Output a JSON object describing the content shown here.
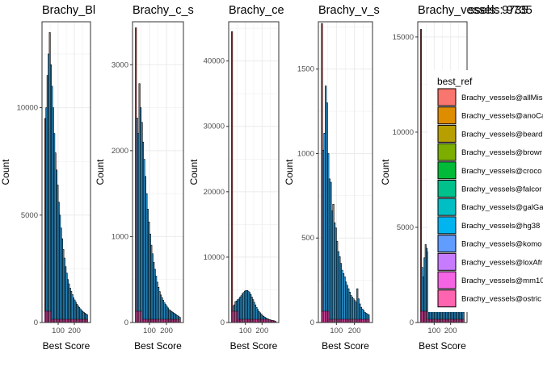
{
  "figure_overlay_text": "ssels: 9735",
  "chart_data": [
    {
      "type": "bar",
      "title": "Brachy_Bl",
      "xlabel": "Best Score",
      "ylabel": "Count",
      "xlim": [
        0,
        300
      ],
      "ylim": [
        0,
        14000
      ],
      "xticks": [
        100,
        200
      ],
      "xtick_labels": [
        "100",
        "200"
      ],
      "yticks": [
        0,
        5000,
        10000
      ],
      "ytick_labels": [
        "0",
        "5000",
        "10000"
      ],
      "grid": true,
      "x": [
        20,
        27,
        34,
        41,
        48,
        55,
        62,
        69,
        76,
        83,
        90,
        97,
        104,
        111,
        118,
        125,
        132,
        139,
        146,
        153,
        160,
        167,
        174,
        181,
        188,
        195,
        202,
        209,
        216,
        223,
        230,
        237,
        244,
        251,
        258,
        265,
        272,
        279
      ],
      "values": [
        9500,
        10000,
        11500,
        12500,
        13500,
        12000,
        11000,
        10000,
        8800,
        7900,
        7100,
        6400,
        5600,
        5000,
        4400,
        3900,
        3400,
        3000,
        2600,
        2300,
        2000,
        1800,
        1600,
        1450,
        1300,
        1150,
        1050,
        950,
        850,
        780,
        700,
        640,
        580,
        520,
        480,
        440,
        400,
        360
      ]
    },
    {
      "type": "bar",
      "title": "Brachy_c_s",
      "xlabel": "Best Score",
      "ylabel": "Count",
      "xlim": [
        0,
        300
      ],
      "ylim": [
        0,
        3500
      ],
      "xticks": [
        100,
        200
      ],
      "xtick_labels": [
        "100",
        "200"
      ],
      "yticks": [
        0,
        1000,
        2000,
        3000
      ],
      "ytick_labels": [
        "0",
        "1000",
        "2000",
        "3000"
      ],
      "grid": true,
      "x": [
        20,
        27,
        34,
        41,
        48,
        55,
        62,
        69,
        76,
        83,
        90,
        97,
        104,
        111,
        118,
        125,
        132,
        139,
        146,
        153,
        160,
        167,
        174,
        181,
        188,
        195,
        202,
        209,
        216,
        223,
        230,
        237,
        244,
        251,
        258,
        265,
        272,
        279
      ],
      "values": [
        3430,
        2380,
        2200,
        2780,
        2500,
        2330,
        2100,
        1900,
        1700,
        1500,
        1320,
        1170,
        1030,
        900,
        800,
        700,
        620,
        540,
        470,
        410,
        360,
        320,
        290,
        260,
        230,
        210,
        190,
        170,
        150,
        140,
        130,
        120,
        110,
        100,
        90,
        80,
        70,
        60
      ]
    },
    {
      "type": "bar",
      "title": "Brachy_ce",
      "xlabel": "Best Score",
      "ylabel": "Count",
      "xlim": [
        0,
        300
      ],
      "ylim": [
        0,
        46000
      ],
      "xticks": [
        100,
        200
      ],
      "xtick_labels": [
        "100",
        "200"
      ],
      "yticks": [
        0,
        10000,
        20000,
        30000,
        40000
      ],
      "ytick_labels": [
        "0",
        "10000",
        "20000",
        "30000",
        "40000"
      ],
      "grid": true,
      "x": [
        20,
        27,
        34,
        41,
        48,
        55,
        62,
        69,
        76,
        83,
        90,
        97,
        104,
        111,
        118,
        125,
        132,
        139,
        146,
        153,
        160,
        167,
        174,
        181,
        188,
        195,
        202,
        209,
        216,
        223,
        230,
        237,
        244,
        251,
        258,
        265,
        272,
        279
      ],
      "values": [
        44500,
        2500,
        2700,
        3200,
        3300,
        3500,
        3600,
        3900,
        4100,
        4400,
        4600,
        4800,
        4900,
        4900,
        4800,
        4600,
        4300,
        3900,
        3500,
        3100,
        2700,
        2300,
        2000,
        1700,
        1500,
        1300,
        1100,
        950,
        820,
        700,
        600,
        520,
        450,
        390,
        340,
        300,
        260,
        220
      ]
    },
    {
      "type": "bar",
      "title": "Brachy_v_s",
      "xlabel": "Best Score",
      "ylabel": "Count",
      "xlim": [
        0,
        300
      ],
      "ylim": [
        0,
        1780
      ],
      "xticks": [
        100,
        200
      ],
      "xtick_labels": [
        "100",
        "200"
      ],
      "yticks": [
        0,
        500,
        1000,
        1500
      ],
      "ytick_labels": [
        "0",
        "500",
        "1000",
        "1500"
      ],
      "grid": true,
      "x": [
        20,
        27,
        34,
        41,
        48,
        55,
        62,
        69,
        76,
        83,
        90,
        97,
        104,
        111,
        118,
        125,
        132,
        139,
        146,
        153,
        160,
        167,
        174,
        181,
        188,
        195,
        202,
        209,
        216,
        223,
        230,
        237,
        244,
        251,
        258,
        265,
        272,
        279
      ],
      "values": [
        1770,
        1020,
        1120,
        1400,
        1300,
        1000,
        850,
        830,
        660,
        700,
        590,
        560,
        480,
        420,
        390,
        350,
        310,
        290,
        270,
        240,
        220,
        200,
        180,
        160,
        150,
        140,
        130,
        120,
        200,
        140,
        110,
        90,
        80,
        70,
        60,
        55,
        50,
        45
      ]
    },
    {
      "type": "bar",
      "title": "Brachy_vessels: 9735",
      "xlabel": "Best Score",
      "ylabel": "Count",
      "xlim": [
        0,
        300
      ],
      "ylim": [
        0,
        15800
      ],
      "xticks": [
        100,
        200
      ],
      "xtick_labels": [
        "100",
        "200"
      ],
      "yticks": [
        0,
        5000,
        10000,
        15000
      ],
      "ytick_labels": [
        "0",
        "5000",
        "10000",
        "15000"
      ],
      "grid": true,
      "x": [
        20,
        27,
        34,
        41,
        48,
        55,
        62,
        69,
        76,
        83,
        90,
        97,
        104,
        111,
        118,
        125,
        132,
        139,
        146,
        153,
        160,
        167,
        174,
        181,
        188,
        195,
        202,
        209,
        216,
        223,
        230,
        237,
        244,
        251,
        258,
        265,
        272,
        279
      ],
      "values": [
        15400,
        2900,
        2400,
        3400,
        4100,
        3900,
        3700,
        3500,
        3200,
        3000,
        2800,
        2600,
        2400,
        2250,
        2100,
        1950,
        1850,
        1750,
        1650,
        1550,
        1450,
        1380,
        1300,
        1250,
        1200,
        1150,
        1100,
        1050,
        1000,
        950,
        900,
        850,
        800,
        750,
        700,
        650,
        600,
        550
      ]
    }
  ],
  "legend": {
    "title": "best_ref",
    "placement": "right",
    "entries": [
      {
        "label": "Brachy_vessels@allMis",
        "color": "#F8766D"
      },
      {
        "label": "Brachy_vessels@anoCa",
        "color": "#DE8C00"
      },
      {
        "label": "Brachy_vessels@beard",
        "color": "#B79F00"
      },
      {
        "label": "Brachy_vessels@browr",
        "color": "#7CAE00"
      },
      {
        "label": "Brachy_vessels@croco",
        "color": "#00BA38"
      },
      {
        "label": "Brachy_vessels@falcor",
        "color": "#00C08B"
      },
      {
        "label": "Brachy_vessels@galGa",
        "color": "#00BFC4"
      },
      {
        "label": "Brachy_vessels@hg38",
        "color": "#00B4F0"
      },
      {
        "label": "Brachy_vessels@komo",
        "color": "#619CFF"
      },
      {
        "label": "Brachy_vessels@loxAfr",
        "color": "#C77CFF"
      },
      {
        "label": "Brachy_vessels@mm10",
        "color": "#F564E3"
      },
      {
        "label": "Brachy_vessels@ostric",
        "color": "#FF64B0"
      }
    ]
  },
  "colors": {
    "first_bar": "#B04A4A",
    "main_fill": "#2FA4E7",
    "bottom_fill": "#D1479B",
    "grid": "#EBEBEB",
    "frame": "#333333"
  }
}
